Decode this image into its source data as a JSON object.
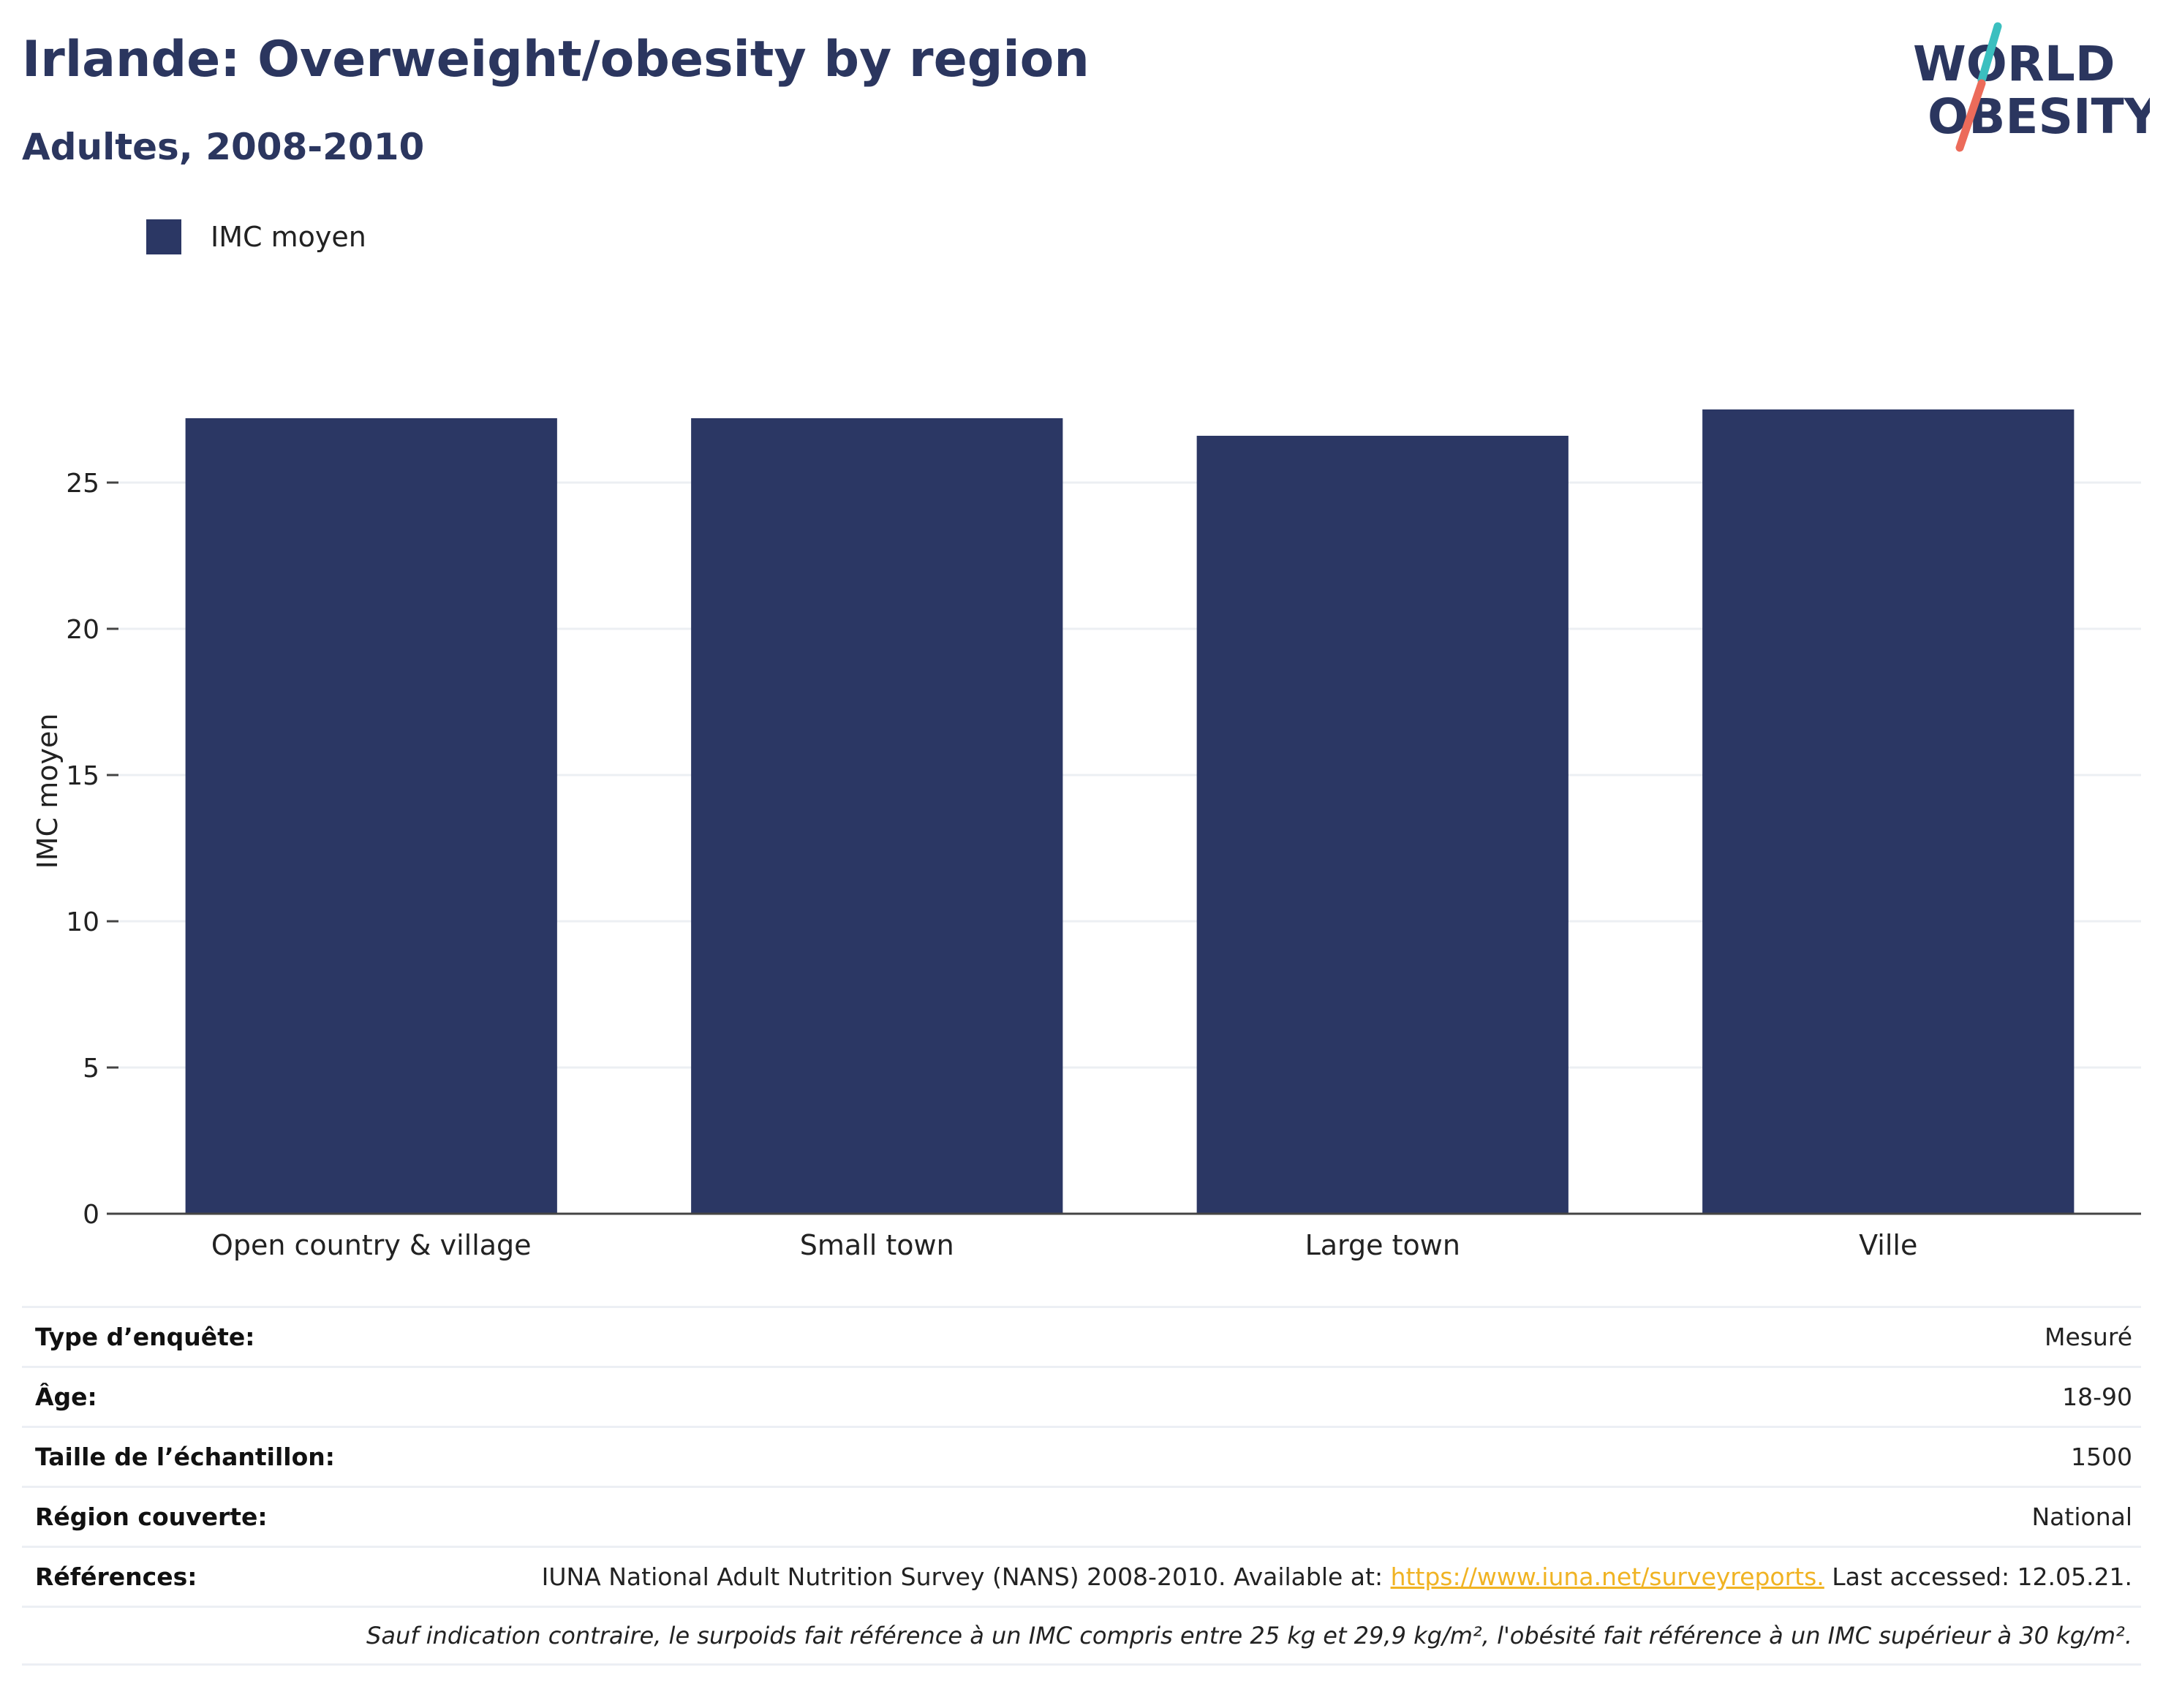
{
  "header": {
    "title": "Irlande: Overweight/obesity by region",
    "subtitle": "Adultes, 2008-2010"
  },
  "logo": {
    "line1": "WORLD",
    "line2": "OBESITY"
  },
  "colors": {
    "bar": "#2b3764",
    "title": "#2b365f",
    "logo_teal": "#3bbfbf",
    "logo_coral": "#ec6b5a",
    "link": "#f0b323"
  },
  "chart_data": {
    "type": "bar",
    "categories": [
      "Open country & village",
      "Small town",
      "Large town",
      "Ville"
    ],
    "series": [
      {
        "name": "IMC moyen",
        "values": [
          27.2,
          27.2,
          26.6,
          27.5
        ]
      }
    ],
    "xlabel": "",
    "ylabel": "IMC moyen",
    "ylim": [
      0,
      30
    ],
    "yticks": [
      0,
      5,
      10,
      15,
      20,
      25
    ],
    "grid": true,
    "legend": "top-left"
  },
  "info": {
    "survey_type": {
      "label": "Type d’enquête:",
      "value": "Mesuré"
    },
    "age": {
      "label": "Âge:",
      "value": "18-90"
    },
    "sample_size": {
      "label": "Taille de l’échantillon:",
      "value": "1500"
    },
    "region": {
      "label": "Région couverte:",
      "value": "National"
    },
    "references": {
      "label": "Références:",
      "text_before": "IUNA National Adult Nutrition Survey (NANS) 2008-2010. Available at: ",
      "link": "https://www.iuna.net/surveyreports.",
      "text_after": " Last accessed: 12.05.21."
    },
    "note": "Sauf indication contraire, le surpoids fait référence à un IMC compris entre 25 kg et 29,9 kg/m², l'obésité fait référence à un IMC supérieur à 30 kg/m²."
  }
}
